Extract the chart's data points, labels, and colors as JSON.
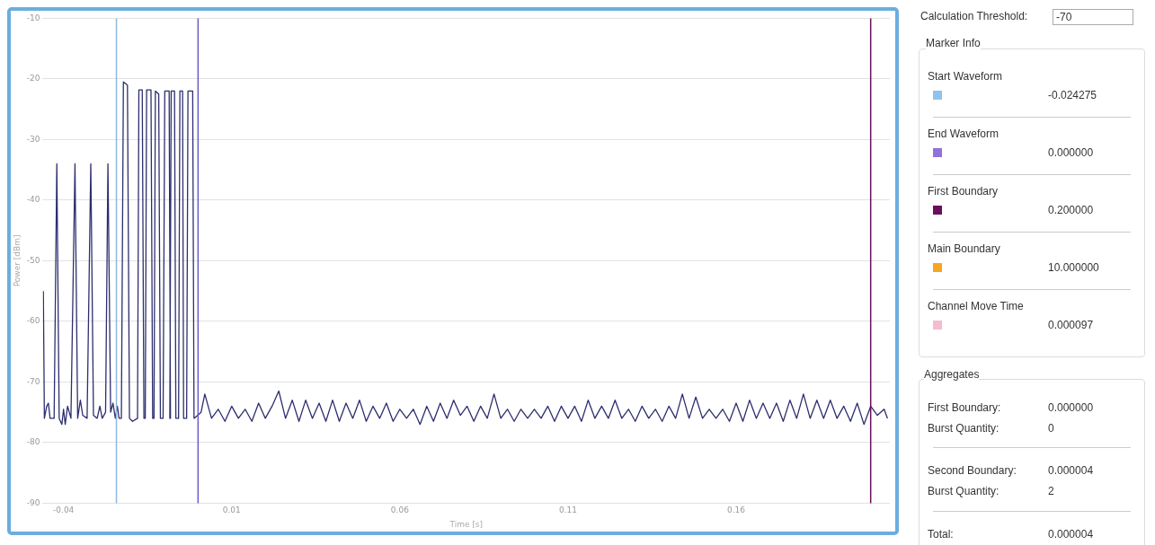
{
  "chart_data": [
    {
      "type": "line",
      "xlabel": "Time [s]",
      "ylabel": "Power [dBm]",
      "xlim": [
        -0.0462,
        0.2057
      ],
      "xticks": [
        -0.04,
        0.01,
        0.06,
        0.11,
        0.16
      ],
      "ylim": [
        -90,
        -10
      ],
      "yticks": [
        -90,
        -80,
        -70,
        -60,
        -50,
        -40,
        -30,
        -20,
        -10
      ],
      "grid": "y",
      "marker": "none",
      "line_style": "solid",
      "ref_lines": [
        {
          "axis": "x",
          "value": -0.024275,
          "color": "#8fb8e0"
        },
        {
          "axis": "x",
          "value": 0,
          "color": "#6a5acd"
        },
        {
          "axis": "x",
          "value": 0.2,
          "color": "#6b0f5a"
        }
      ],
      "series": [
        {
          "type": "line",
          "color": "#2d2e6e",
          "x": [
            -0.046,
            -0.0457,
            -0.045,
            -0.0445,
            -0.044,
            -0.0428,
            -0.042,
            -0.0413,
            -0.0405,
            -0.04,
            -0.0395,
            -0.0388,
            -0.0378,
            -0.0366,
            -0.0358,
            -0.035,
            -0.0343,
            -0.033,
            -0.0319,
            -0.0311,
            -0.03,
            -0.0292,
            -0.0285,
            -0.0275,
            -0.0268,
            -0.026,
            -0.0253,
            -0.0246,
            -0.024,
            -0.0235,
            -0.0228,
            -0.0222,
            -0.021,
            -0.0204,
            -0.0195,
            -0.018,
            -0.0176,
            -0.0166,
            -0.0161,
            -0.0157,
            -0.0153,
            -0.014,
            -0.0135,
            -0.0131,
            -0.0127,
            -0.0117,
            -0.0112,
            -0.0104,
            -0.0099,
            -0.0086,
            -0.0082,
            -0.0084,
            -0.008,
            -0.007,
            -0.0066,
            -0.0058,
            -0.0054,
            -0.0046,
            -0.0043,
            -0.0034,
            -0.003,
            -0.0016,
            -0.0012,
            0.0009,
            0.002,
            0.004,
            0.006,
            0.008,
            0.01,
            0.012,
            0.014,
            0.016,
            0.018,
            0.02,
            0.022,
            0.024,
            0.026,
            0.028,
            0.03,
            0.032,
            0.034,
            0.036,
            0.038,
            0.04,
            0.042,
            0.044,
            0.046,
            0.048,
            0.05,
            0.052,
            0.054,
            0.056,
            0.058,
            0.06,
            0.062,
            0.064,
            0.066,
            0.068,
            0.07,
            0.072,
            0.074,
            0.076,
            0.078,
            0.08,
            0.082,
            0.084,
            0.086,
            0.088,
            0.09,
            0.092,
            0.094,
            0.096,
            0.098,
            0.1,
            0.102,
            0.104,
            0.106,
            0.108,
            0.11,
            0.112,
            0.114,
            0.116,
            0.118,
            0.12,
            0.122,
            0.124,
            0.126,
            0.128,
            0.13,
            0.132,
            0.134,
            0.136,
            0.138,
            0.14,
            0.142,
            0.144,
            0.146,
            0.148,
            0.15,
            0.152,
            0.154,
            0.156,
            0.158,
            0.16,
            0.162,
            0.164,
            0.166,
            0.168,
            0.17,
            0.172,
            0.174,
            0.176,
            0.178,
            0.18,
            0.182,
            0.184,
            0.186,
            0.188,
            0.19,
            0.192,
            0.194,
            0.196,
            0.198,
            0.2,
            0.202,
            0.204,
            0.205
          ],
          "values": [
            -55,
            -76,
            -74,
            -73.5,
            -76,
            -76,
            -34,
            -76,
            -77,
            -74.5,
            -77,
            -74,
            -76,
            -34,
            -76,
            -73,
            -75.5,
            -76,
            -34,
            -75.5,
            -76,
            -74,
            -76,
            -75,
            -34,
            -75,
            -73.5,
            -76,
            -74,
            -76,
            -76,
            -20.5,
            -21,
            -76,
            -76.5,
            -76,
            -21.8,
            -21.8,
            -76,
            -76,
            -21.8,
            -21.8,
            -76,
            -76,
            -22,
            -22.5,
            -76,
            -76,
            -22,
            -22,
            -76,
            -76,
            -22,
            -22,
            -76,
            -76,
            -22,
            -22,
            -76,
            -76,
            -22,
            -22,
            -76,
            -75,
            -72,
            -76,
            -74.5,
            -76.5,
            -74,
            -76,
            -74.5,
            -76.5,
            -73.5,
            -76,
            -74,
            -71.5,
            -76,
            -73,
            -76.5,
            -73,
            -76,
            -73.5,
            -76.5,
            -73,
            -76.5,
            -73.5,
            -76,
            -73,
            -76.5,
            -74,
            -76,
            -73.5,
            -76.5,
            -74.5,
            -76,
            -74.5,
            -77,
            -74,
            -76.5,
            -73.5,
            -76,
            -73,
            -75.5,
            -74,
            -76.5,
            -74,
            -76,
            -72,
            -76,
            -74.5,
            -76.5,
            -74.5,
            -76,
            -74.5,
            -76,
            -74,
            -76.5,
            -74,
            -76,
            -74,
            -76.5,
            -73,
            -76,
            -74,
            -76,
            -73,
            -76,
            -74.5,
            -76.5,
            -74,
            -76,
            -74.5,
            -76.5,
            -74,
            -76,
            -72,
            -76,
            -72.5,
            -76,
            -74.5,
            -76,
            -74.5,
            -76.5,
            -73.5,
            -76.5,
            -73,
            -76,
            -73.5,
            -76,
            -73.5,
            -76.5,
            -73,
            -76,
            -72,
            -76,
            -73,
            -76,
            -73,
            -76,
            -74,
            -76.5,
            -73.5,
            -77,
            -74,
            -75.5,
            -74.5,
            -76
          ]
        }
      ]
    },
    {
      "type": "other",
      "annotations": [
        "Calculation Threshold:",
        "-70",
        "Marker Info",
        "Start Waveform",
        "-0.024275",
        "End Waveform",
        "0.000000",
        "First Boundary",
        "0.200000",
        "Main Boundary",
        "10.000000",
        "Channel Move Time",
        "0.000097",
        "Aggregates",
        "First Boundary:",
        "0.000000",
        "Burst Quantity:",
        "0",
        "Second Boundary:",
        "0.000004",
        "Burst Quantity:",
        "2",
        "Total:",
        "0.000004"
      ]
    }
  ]
}
